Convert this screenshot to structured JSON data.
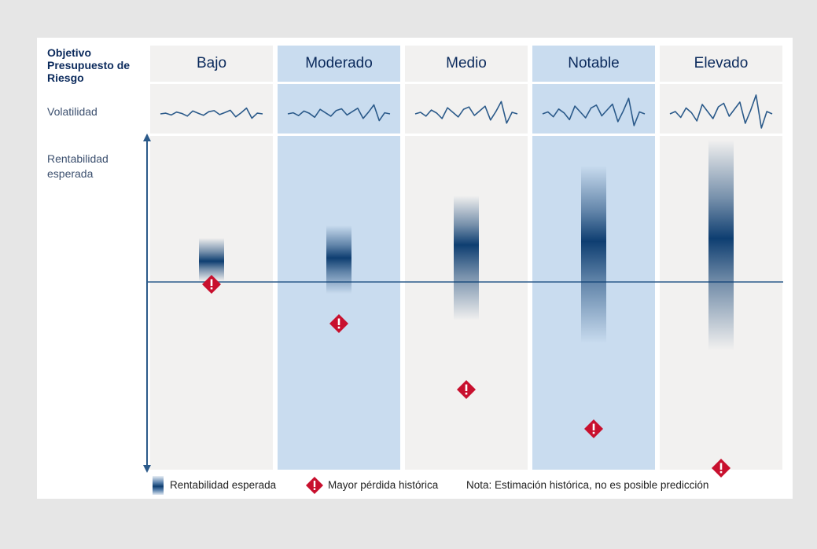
{
  "header": {
    "objective_label": "Objetivo Presupuesto de Riesgo",
    "volatility_label": "Volatilidad",
    "expected_return_label": "Rentabilidad esperada"
  },
  "profiles": [
    {
      "name": "Bajo",
      "style": "gray",
      "volatility": 1,
      "return_top": 0.3,
      "return_mid": 0.37,
      "return_bottom": 0.43,
      "max_loss": 0.44
    },
    {
      "name": "Moderado",
      "style": "blue",
      "volatility": 2,
      "return_top": 0.26,
      "return_mid": 0.36,
      "return_bottom": 0.47,
      "max_loss": 0.56
    },
    {
      "name": "Medio",
      "style": "gray",
      "volatility": 3,
      "return_top": 0.17,
      "return_mid": 0.32,
      "return_bottom": 0.55,
      "max_loss": 0.76
    },
    {
      "name": "Notable",
      "style": "blue",
      "volatility": 4,
      "return_top": 0.08,
      "return_mid": 0.31,
      "return_bottom": 0.62,
      "max_loss": 0.88
    },
    {
      "name": "Elevado",
      "style": "gray",
      "volatility": 5,
      "return_top": 0.0,
      "return_mid": 0.3,
      "return_bottom": 0.64,
      "max_loss": 1.0
    }
  ],
  "legend": {
    "expected_return": "Rentabilidad esperada",
    "max_loss": "Mayor pérdida histórica",
    "note": "Nota: Estimación histórica, no es posible predicción"
  },
  "colors": {
    "dark_blue": "#0e3e71",
    "light_blue_col": "#c9dcef",
    "gray_col": "#f2f1f0",
    "warning_red": "#c8102e",
    "wave_stroke": "#2b5a8a"
  }
}
